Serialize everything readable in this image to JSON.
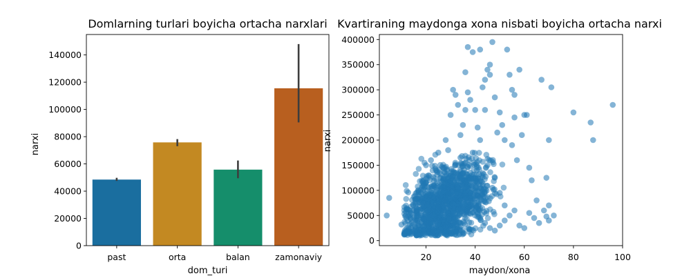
{
  "chart_data": [
    {
      "type": "bar",
      "title": "Domlarning turlari boyicha ortacha narxlari",
      "xlabel": "dom_turi",
      "ylabel": "narxi",
      "categories": [
        "past",
        "orta",
        "balan",
        "zamonaviy"
      ],
      "values": [
        48500,
        75800,
        55800,
        115500
      ],
      "error_low": [
        47500,
        73000,
        49500,
        90500
      ],
      "error_high": [
        49800,
        78200,
        62500,
        148000
      ],
      "colors": [
        "#1a6e9f",
        "#c38922",
        "#158e6b",
        "#b85f1f"
      ],
      "ylim": [
        0,
        155000
      ],
      "yticks": [
        0,
        20000,
        40000,
        60000,
        80000,
        100000,
        120000,
        140000
      ],
      "grid": false
    },
    {
      "type": "scatter",
      "title": "Kvartiraning maydonga xona nisbati boyicha ortacha narxi",
      "xlabel": "maydon/xona",
      "ylabel": "narxi",
      "xlim": [
        1,
        100
      ],
      "ylim": [
        -10000,
        410000
      ],
      "xticks": [
        20,
        40,
        60,
        80,
        100
      ],
      "yticks": [
        0,
        50000,
        100000,
        150000,
        200000,
        250000,
        300000,
        350000,
        400000
      ],
      "color": "#1f77b4",
      "grid": false,
      "points": [
        [
          5,
          85000
        ],
        [
          4,
          50000
        ],
        [
          10,
          32000
        ],
        [
          12,
          45000
        ],
        [
          13,
          55000
        ],
        [
          14,
          25000
        ],
        [
          15,
          60000
        ],
        [
          16,
          40000
        ],
        [
          17,
          75000
        ],
        [
          18,
          95000
        ],
        [
          19,
          120000
        ],
        [
          20,
          150000
        ],
        [
          21,
          130000
        ],
        [
          22,
          160000
        ],
        [
          23,
          110000
        ],
        [
          24,
          140000
        ],
        [
          25,
          175000
        ],
        [
          26,
          125000
        ],
        [
          27,
          145000
        ],
        [
          28,
          200000
        ],
        [
          29,
          180000
        ],
        [
          30,
          250000
        ],
        [
          31,
          300000
        ],
        [
          32,
          290000
        ],
        [
          33,
          270000
        ],
        [
          34,
          210000
        ],
        [
          35,
          230000
        ],
        [
          36,
          260000
        ],
        [
          37,
          295000
        ],
        [
          38,
          280000
        ],
        [
          39,
          175000
        ],
        [
          40,
          260000
        ],
        [
          41,
          225000
        ],
        [
          42,
          200000
        ],
        [
          43,
          305000
        ],
        [
          44,
          260000
        ],
        [
          45,
          340000
        ],
        [
          46,
          350000
        ],
        [
          47,
          395000
        ],
        [
          48,
          285000
        ],
        [
          49,
          215000
        ],
        [
          50,
          255000
        ],
        [
          51,
          230000
        ],
        [
          52,
          200000
        ],
        [
          53,
          380000
        ],
        [
          54,
          330000
        ],
        [
          55,
          300000
        ],
        [
          56,
          245000
        ],
        [
          57,
          160000
        ],
        [
          58,
          340000
        ],
        [
          60,
          250000
        ],
        [
          61,
          250000
        ],
        [
          62,
          145000
        ],
        [
          63,
          120000
        ],
        [
          65,
          80000
        ],
        [
          67,
          320000
        ],
        [
          69,
          125000
        ],
        [
          70,
          200000
        ],
        [
          71,
          305000
        ],
        [
          72,
          50000
        ],
        [
          70,
          70000
        ],
        [
          70,
          40000
        ],
        [
          80,
          255000
        ],
        [
          87,
          235000
        ],
        [
          88,
          200000
        ],
        [
          96,
          270000
        ],
        [
          37,
          385000
        ],
        [
          39,
          375000
        ],
        [
          42,
          380000
        ],
        [
          44,
          320000
        ],
        [
          46,
          330000
        ],
        [
          36,
          335000
        ],
        [
          56,
          290000
        ],
        [
          59,
          210000
        ],
        [
          55,
          190000
        ],
        [
          47,
          105000
        ],
        [
          50,
          95000
        ],
        [
          52,
          70000
        ],
        [
          48,
          125000
        ],
        [
          45,
          150000
        ],
        [
          43,
          110000
        ],
        [
          41,
          90000
        ],
        [
          38,
          135000
        ],
        [
          35,
          90000
        ],
        [
          33,
          60000
        ],
        [
          31,
          45000
        ],
        [
          29,
          35000
        ],
        [
          27,
          30000
        ],
        [
          25,
          22000
        ],
        [
          23,
          18000
        ],
        [
          21,
          15000
        ],
        [
          19,
          20000
        ],
        [
          17,
          30000
        ],
        [
          16,
          12000
        ],
        [
          14,
          18000
        ],
        [
          22,
          40000
        ],
        [
          24,
          65000
        ],
        [
          26,
          85000
        ],
        [
          28,
          100000
        ],
        [
          30,
          115000
        ],
        [
          32,
          150000
        ],
        [
          34,
          165000
        ],
        [
          36,
          120000
        ],
        [
          38,
          80000
        ],
        [
          40,
          60000
        ],
        [
          42,
          45000
        ],
        [
          44,
          35000
        ],
        [
          46,
          25000
        ],
        [
          48,
          20000
        ],
        [
          50,
          30000
        ],
        [
          52,
          40000
        ],
        [
          54,
          50000
        ],
        [
          56,
          60000
        ],
        [
          58,
          30000
        ],
        [
          60,
          25000
        ],
        [
          62,
          55000
        ],
        [
          64,
          45000
        ],
        [
          66,
          35000
        ],
        [
          68,
          60000
        ],
        [
          69,
          48000
        ]
      ]
    }
  ]
}
